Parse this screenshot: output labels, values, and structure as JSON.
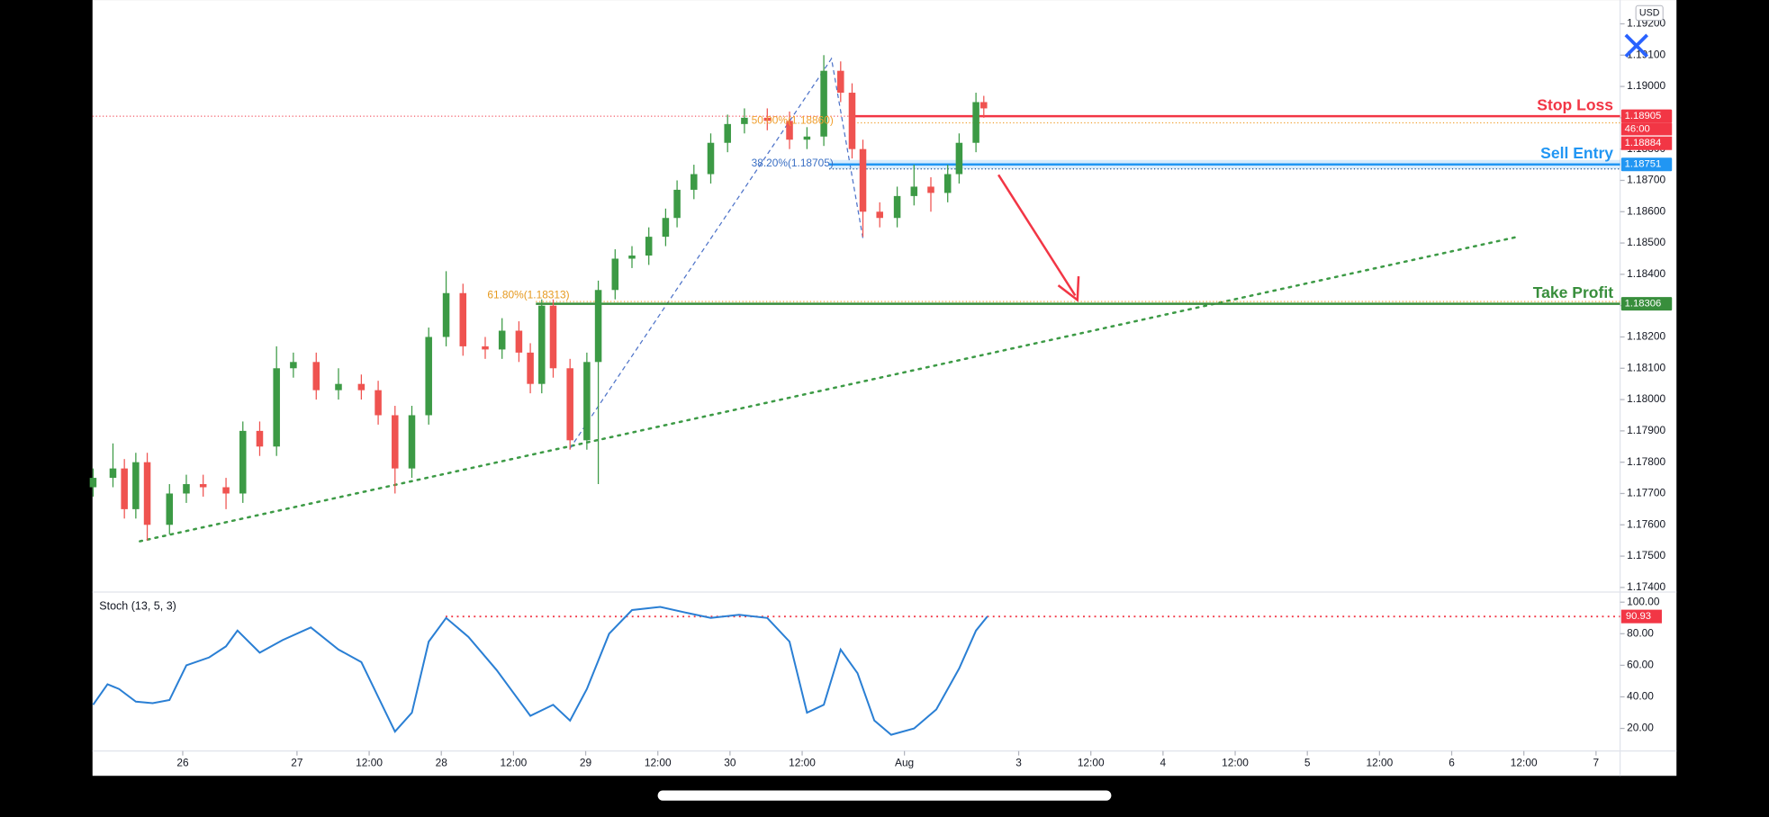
{
  "chart_data": [
    {
      "type": "candlestick",
      "currency": "USD",
      "xlim": [
        -34,
        220
      ],
      "xticks": [
        {
          "value": -19,
          "label": "26"
        },
        {
          "value": 0,
          "label": "27"
        },
        {
          "value": 12,
          "label": "12:00"
        },
        {
          "value": 24,
          "label": "28"
        },
        {
          "value": 36,
          "label": "12:00"
        },
        {
          "value": 48,
          "label": "29"
        },
        {
          "value": 60,
          "label": "12:00"
        },
        {
          "value": 72,
          "label": "30"
        },
        {
          "value": 84,
          "label": "12:00"
        },
        {
          "value": 101,
          "label": "Aug"
        },
        {
          "value": 120,
          "label": "3"
        },
        {
          "value": 132,
          "label": "12:00"
        },
        {
          "value": 144,
          "label": "4"
        },
        {
          "value": 156,
          "label": "12:00"
        },
        {
          "value": 168,
          "label": "5"
        },
        {
          "value": 180,
          "label": "12:00"
        },
        {
          "value": 192,
          "label": "6"
        },
        {
          "value": 204,
          "label": "12:00"
        },
        {
          "value": 216,
          "label": "7"
        }
      ],
      "ylim": [
        1.17389,
        1.19276
      ],
      "yticks": [
        {
          "value": 1.174,
          "label": "1.17400"
        },
        {
          "value": 1.175,
          "label": "1.17500"
        },
        {
          "value": 1.176,
          "label": "1.17600"
        },
        {
          "value": 1.177,
          "label": "1.17700"
        },
        {
          "value": 1.178,
          "label": "1.17800"
        },
        {
          "value": 1.179,
          "label": "1.17900"
        },
        {
          "value": 1.18,
          "label": "1.18000"
        },
        {
          "value": 1.181,
          "label": "1.18100"
        },
        {
          "value": 1.182,
          "label": "1.18200"
        },
        {
          "value": 1.183,
          "label": "1.18300"
        },
        {
          "value": 1.184,
          "label": "1.18400"
        },
        {
          "value": 1.185,
          "label": "1.18500"
        },
        {
          "value": 1.186,
          "label": "1.18600"
        },
        {
          "value": 1.187,
          "label": "1.18700"
        },
        {
          "value": 1.188,
          "label": "1.18800"
        },
        {
          "value": 1.189,
          "label": "1.18900"
        },
        {
          "value": 1.19,
          "label": "1.19000"
        },
        {
          "value": 1.191,
          "label": "1.19100"
        },
        {
          "value": 1.192,
          "label": "1.19200"
        }
      ],
      "grid": false,
      "up_color": "#3c9a45",
      "down_color": "#ef5350",
      "x": [
        -33.9,
        -30.6,
        -28.7,
        -26.8,
        -24.9,
        -21.2,
        -18.4,
        -15.6,
        -11.8,
        -9.0,
        -6.2,
        -3.4,
        -0.6,
        3.2,
        6.9,
        10.7,
        13.5,
        16.3,
        19.1,
        21.9,
        24.8,
        27.6,
        31.3,
        34.1,
        36.9,
        38.8,
        40.7,
        42.6,
        45.4,
        48.2,
        50.1,
        52.9,
        55.7,
        58.5,
        61.3,
        63.2,
        66.0,
        68.8,
        71.6,
        74.4,
        78.2,
        81.9,
        84.8,
        87.6,
        90.4,
        92.3,
        94.1,
        96.9,
        99.8,
        102.6,
        105.4,
        108.2,
        110.1,
        112.9,
        114.2
      ],
      "open": [
        1.1772,
        1.1775,
        1.1778,
        1.1765,
        1.178,
        1.176,
        1.177,
        1.1773,
        1.1772,
        1.177,
        1.179,
        1.1785,
        1.181,
        1.1812,
        1.1803,
        1.1805,
        1.1803,
        1.1795,
        1.1778,
        1.1795,
        1.182,
        1.1834,
        1.1817,
        1.1816,
        1.1822,
        1.1815,
        1.1805,
        1.183,
        1.181,
        1.1787,
        1.1812,
        1.1835,
        1.1845,
        1.1846,
        1.1852,
        1.1858,
        1.1867,
        1.1872,
        1.1882,
        1.1888,
        1.189,
        1.1889,
        1.1883,
        1.1884,
        1.1905,
        1.1898,
        1.188,
        1.186,
        1.1858,
        1.1865,
        1.1868,
        1.1866,
        1.1872,
        1.1882,
        1.1895
      ],
      "high": [
        1.1778,
        1.1786,
        1.1781,
        1.1783,
        1.1783,
        1.1773,
        1.1776,
        1.1776,
        1.1775,
        1.1793,
        1.1793,
        1.1817,
        1.1815,
        1.1815,
        1.181,
        1.1808,
        1.1806,
        1.1798,
        1.1798,
        1.1823,
        1.1841,
        1.1837,
        1.182,
        1.1826,
        1.1825,
        1.1818,
        1.1832,
        1.1832,
        1.1813,
        1.1815,
        1.1838,
        1.1848,
        1.1849,
        1.1855,
        1.1861,
        1.187,
        1.1875,
        1.1885,
        1.1891,
        1.1893,
        1.1893,
        1.1892,
        1.1887,
        1.191,
        1.1908,
        1.1901,
        1.1883,
        1.1863,
        1.1868,
        1.1875,
        1.1871,
        1.1875,
        1.1885,
        1.1898,
        1.1897
      ],
      "low": [
        1.1769,
        1.1772,
        1.1762,
        1.1762,
        1.1755,
        1.1757,
        1.1767,
        1.1769,
        1.1765,
        1.1767,
        1.1782,
        1.1782,
        1.1807,
        1.18,
        1.18,
        1.18,
        1.1792,
        1.177,
        1.1775,
        1.1792,
        1.1817,
        1.1814,
        1.1813,
        1.1813,
        1.1812,
        1.1802,
        1.1802,
        1.1807,
        1.1784,
        1.1784,
        1.1773,
        1.1832,
        1.1842,
        1.1843,
        1.1849,
        1.1855,
        1.1864,
        1.1869,
        1.1879,
        1.1885,
        1.1886,
        1.188,
        1.188,
        1.1881,
        1.1895,
        1.1877,
        1.1852,
        1.1855,
        1.1855,
        1.1862,
        1.186,
        1.1863,
        1.1869,
        1.1879,
        1.189
      ],
      "close": [
        1.1775,
        1.1778,
        1.1765,
        1.178,
        1.176,
        1.177,
        1.1773,
        1.1772,
        1.177,
        1.179,
        1.1785,
        1.181,
        1.1812,
        1.1803,
        1.1805,
        1.1803,
        1.1795,
        1.1778,
        1.1795,
        1.182,
        1.1834,
        1.1817,
        1.1816,
        1.1822,
        1.1815,
        1.1805,
        1.183,
        1.181,
        1.1787,
        1.1812,
        1.1835,
        1.1845,
        1.1846,
        1.1852,
        1.1858,
        1.1867,
        1.1872,
        1.1882,
        1.1888,
        1.189,
        1.1889,
        1.1883,
        1.1884,
        1.1905,
        1.1898,
        1.188,
        1.186,
        1.1858,
        1.1865,
        1.1868,
        1.1866,
        1.1872,
        1.1882,
        1.1895,
        1.1893
      ],
      "levels": [
        {
          "name": "Stop Loss",
          "value": 1.18905,
          "color": "#f23645"
        },
        {
          "name": "Sell Entry",
          "value": 1.18751,
          "color": "#2196f3"
        },
        {
          "name": "Take Profit",
          "value": 1.18306,
          "color": "#388e3c"
        }
      ],
      "countdown": "46:00",
      "bid": 1.18884,
      "fib_labels": [
        "50.00%(1.18860)",
        "38.20%(1.18705)",
        "61.80%(1.18313)"
      ]
    },
    {
      "type": "line",
      "title": "Stoch (13, 5, 3)",
      "color": "#2a7fd4",
      "xlim": [
        -34,
        220
      ],
      "ylim": [
        6.4,
        105
      ],
      "yticks": [
        {
          "value": 20,
          "label": "20.00"
        },
        {
          "value": 40,
          "label": "40.00"
        },
        {
          "value": 60,
          "label": "60.00"
        },
        {
          "value": 80,
          "label": "80.00"
        },
        {
          "value": 100,
          "label": "100.00"
        }
      ],
      "x": [
        -33.9,
        -31.5,
        -29.6,
        -26.8,
        -24,
        -21.2,
        -18.4,
        -14.6,
        -11.8,
        -9.9,
        -6.2,
        -2.4,
        2.3,
        6.9,
        10.7,
        13.5,
        16.3,
        19.1,
        21.9,
        24.8,
        28.5,
        33.2,
        38.8,
        42.6,
        45.4,
        48.2,
        51.9,
        55.7,
        60.4,
        65.1,
        68.8,
        73.5,
        78.2,
        81.9,
        84.8,
        87.6,
        90.4,
        93.2,
        96,
        98.8,
        102.6,
        106.3,
        110.1,
        112.9,
        114.8
      ],
      "values": [
        35,
        48,
        45,
        37,
        36,
        38,
        60,
        65,
        72,
        82,
        68,
        76,
        84,
        70,
        62,
        40,
        18,
        30,
        75,
        90,
        78,
        57,
        28,
        35,
        25,
        45,
        80,
        95,
        97,
        93,
        90,
        92,
        90,
        75,
        30,
        35,
        70,
        55,
        25,
        16,
        20,
        32,
        58,
        82,
        90.93
      ],
      "last_value": 90.93,
      "last_color": "#f23645"
    }
  ]
}
